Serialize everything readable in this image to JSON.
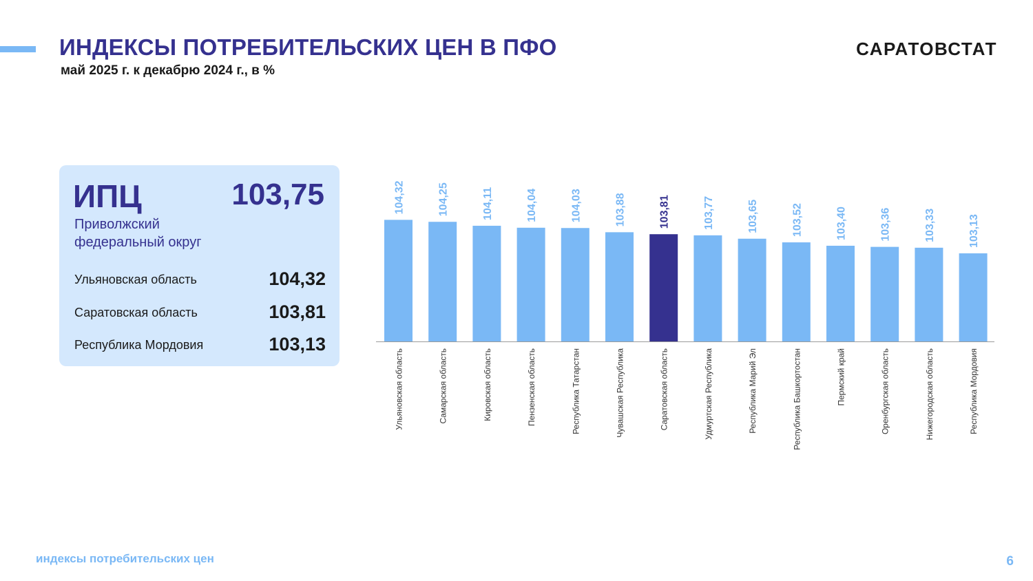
{
  "header": {
    "title": "ИНДЕКСЫ ПОТРЕБИТЕЛЬСКИХ ЦЕН В ПФО",
    "subtitle": "май 2025 г. к декабрю 2024 г., в %",
    "brand": "САРАТОВСТАТ"
  },
  "summary_card": {
    "label": "ИПЦ",
    "value": "103,75",
    "district_line1": "Приволжский",
    "district_line2": "федеральный округ",
    "rows": [
      {
        "name": "Ульяновская область",
        "value": "104,32"
      },
      {
        "name": "Саратовская область",
        "value": "103,81"
      },
      {
        "name": "Республика Мордовия",
        "value": "103,13"
      }
    ]
  },
  "footer": {
    "section": "индексы потребительских цен",
    "page": "6"
  },
  "colors": {
    "accent": "#7ab8f5",
    "bar": "#7ab8f5",
    "highlight_bar": "#35318f",
    "title": "#35318f",
    "card_bg": "#d4e8fd"
  },
  "chart_data": {
    "type": "bar",
    "categories": [
      "Ульяновская область",
      "Самарская область",
      "Кировская область",
      "Пензенская область",
      "Республика Татарстан",
      "Чувашская Республика",
      "Саратовская область",
      "Удмуртская Республика",
      "Республика Марий Эл",
      "Республика Башкортостан",
      "Пермский край",
      "Оренбургская область",
      "Нижегородская область",
      "Республика Мордовия"
    ],
    "values": [
      104.32,
      104.25,
      104.11,
      104.04,
      104.03,
      103.88,
      103.81,
      103.77,
      103.65,
      103.52,
      103.4,
      103.36,
      103.33,
      103.13
    ],
    "value_labels": [
      "104,32",
      "104,25",
      "104,11",
      "104,04",
      "104,03",
      "103,88",
      "103,81",
      "103,77",
      "103,65",
      "103,52",
      "103,40",
      "103,36",
      "103,33",
      "103,13"
    ],
    "highlight_index": 6,
    "ylim": [
      100,
      104.5
    ],
    "grid": false,
    "legend": "none"
  }
}
